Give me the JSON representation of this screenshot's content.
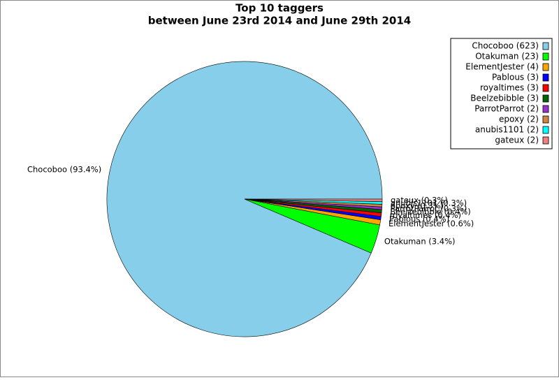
{
  "chart_data": {
    "type": "pie",
    "title": "Top 10 taggers",
    "subtitle": "between June 23rd 2014 and June 29th 2014",
    "categories": [
      "Chocoboo (623)",
      "Otakuman (23)",
      "ElementJester (4)",
      "Pablous (3)",
      "royaltimes (3)",
      "Beelzebibble (3)",
      "ParrotParrot (2)",
      "epoxy (2)",
      "anubis1101 (2)",
      "gateux (2)"
    ],
    "values": [
      93.4,
      3.4,
      0.6,
      0.4,
      0.4,
      0.4,
      0.3,
      0.3,
      0.3,
      0.3
    ],
    "value_labels": [
      "Chocoboo (93.4%)",
      "Otakuman (3.4%)",
      "ElementJester (0.6%)",
      "Pablous (0.4%)",
      "royaltimes (0.4%)",
      "Beelzebibble (0.4%)",
      "ParrotParrot (0.3%)",
      "epoxy (0.3%)",
      "anubis1101 (0.3%)",
      "gateux (0.3%)"
    ],
    "colors": [
      "#87ceeb",
      "#00ff00",
      "#ffa500",
      "#0000ff",
      "#ff0000",
      "#006400",
      "#9932cc",
      "#cd853f",
      "#00ffff",
      "#f08080"
    ],
    "legend": "top-right"
  }
}
